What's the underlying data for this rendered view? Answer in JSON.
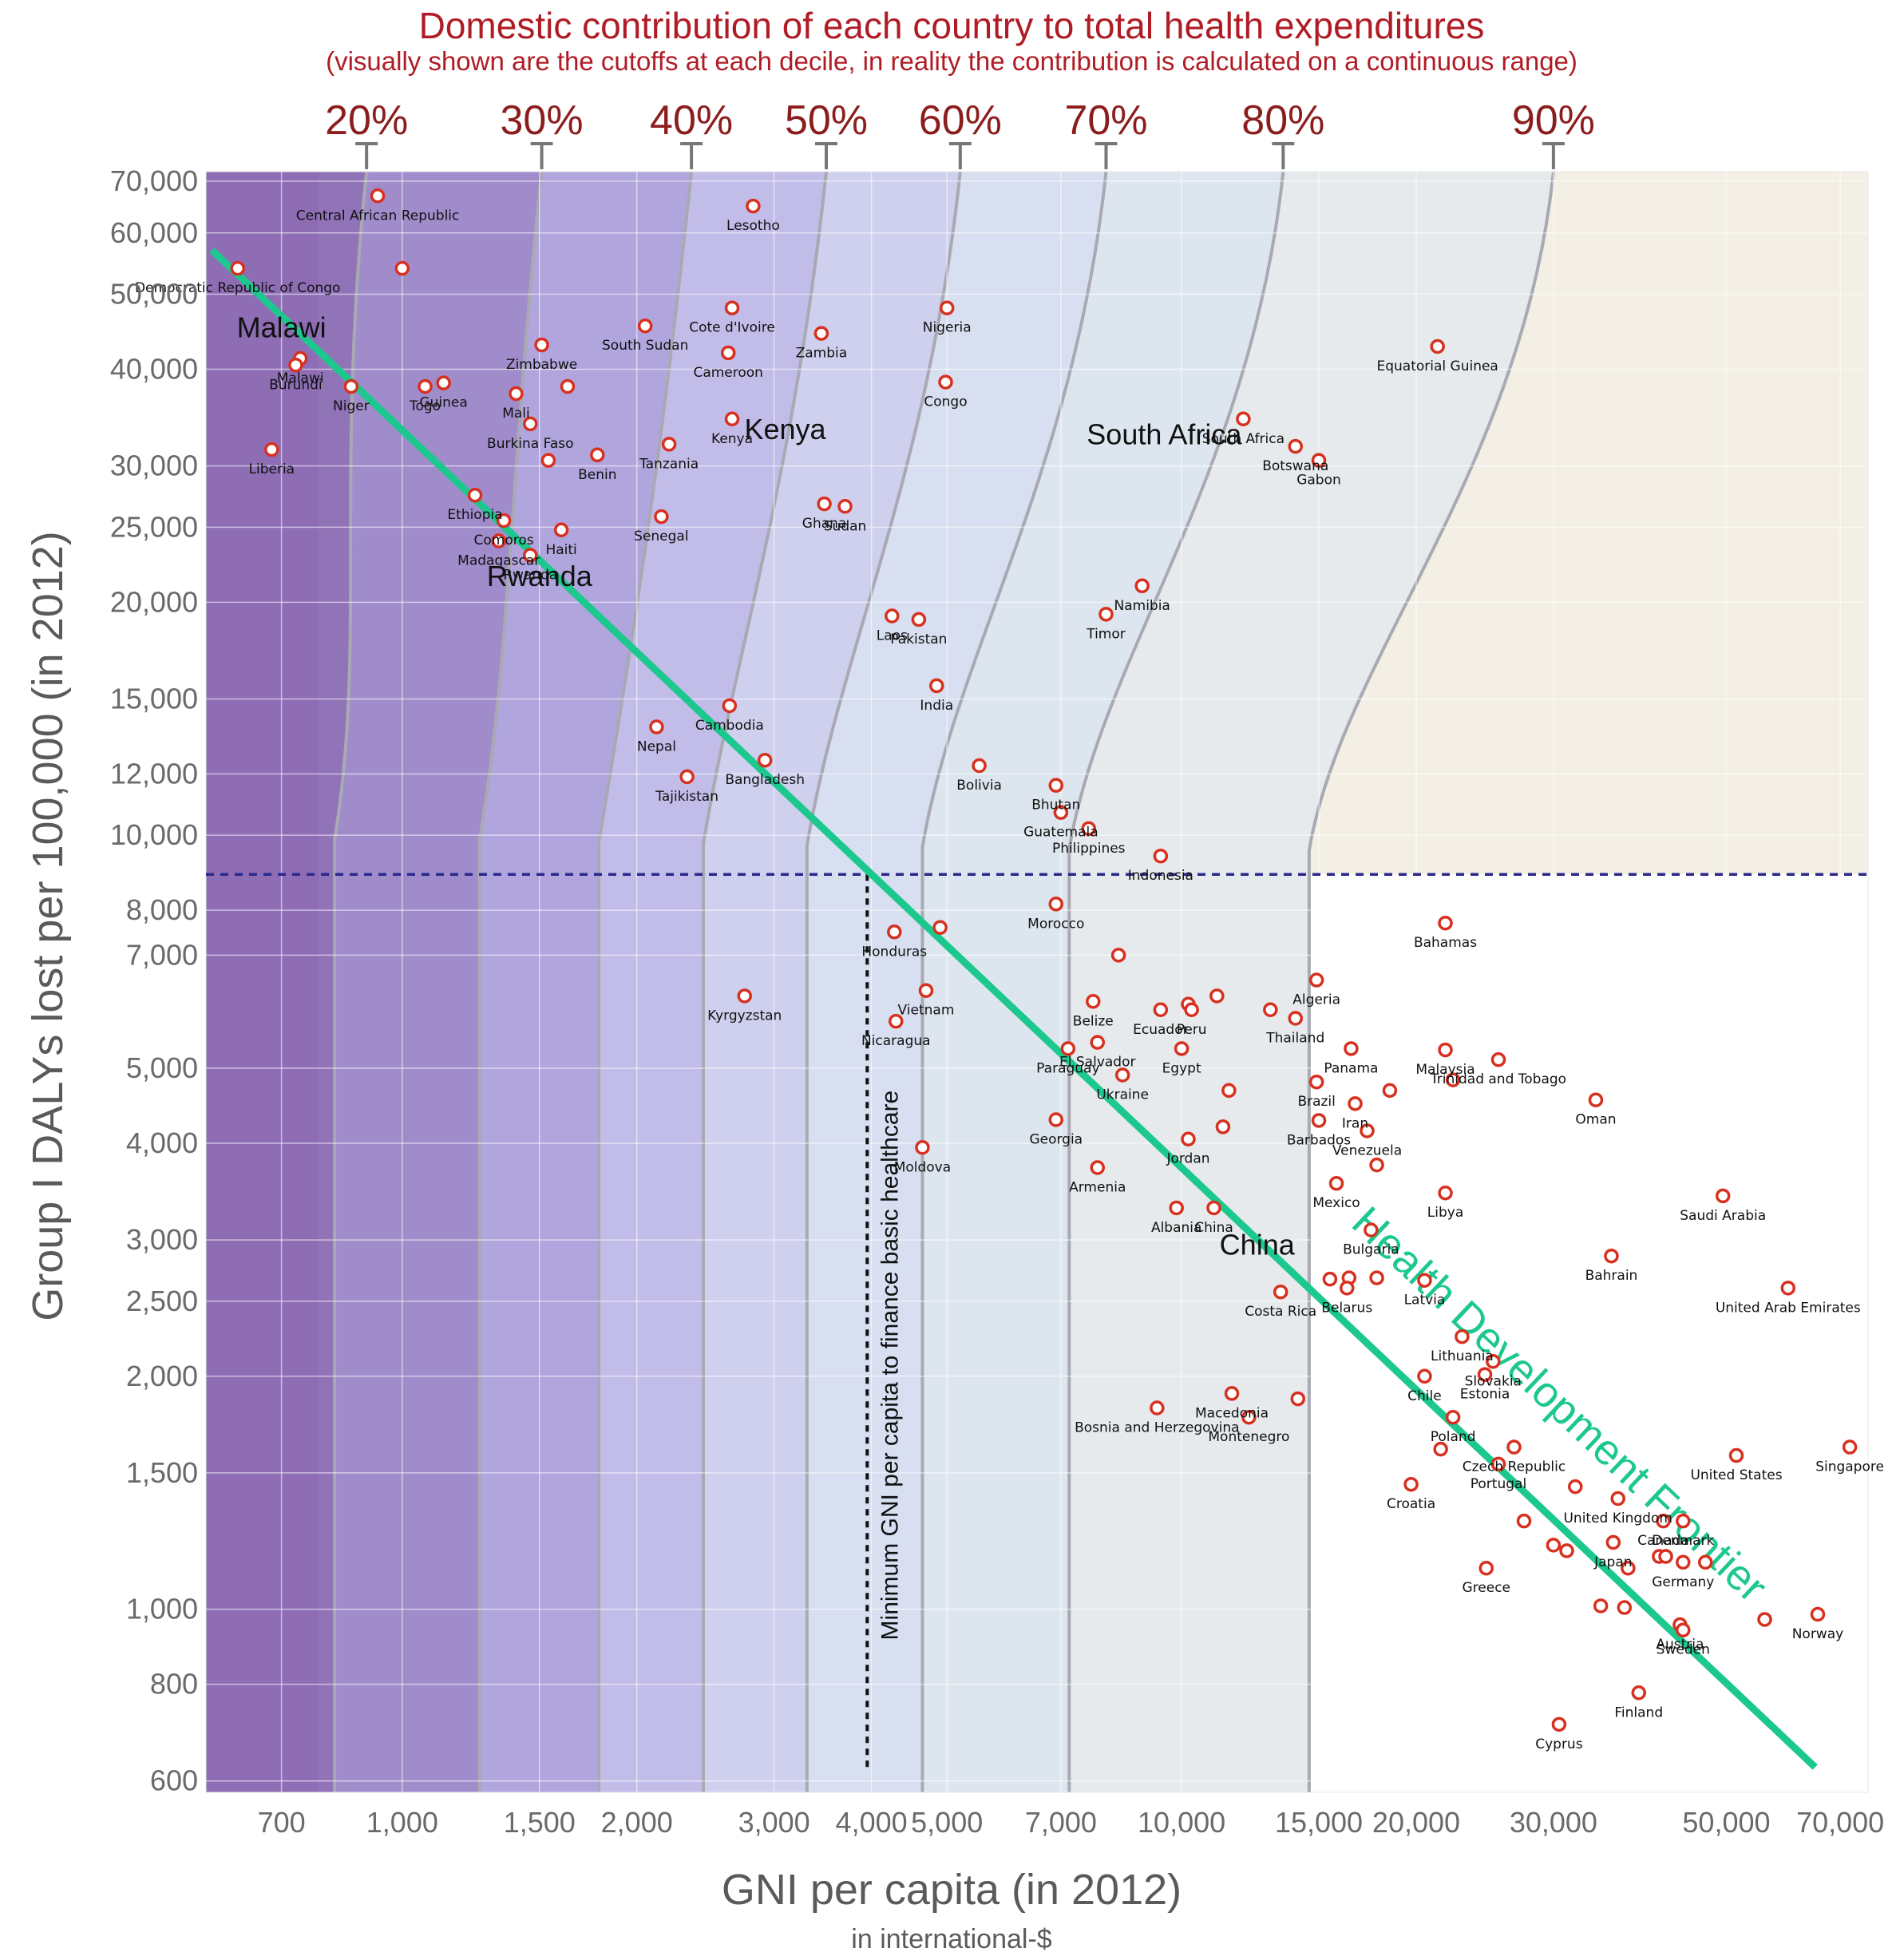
{
  "chart_data": {
    "type": "scatter",
    "title": "Domestic contribution of each country to total health expenditures",
    "subtitle": "(visually shown are the cutoffs at each decile, in reality the contribution is calculated on a continuous range)",
    "xlabel": "GNI per capita (in 2012)",
    "xlabel_sub": "in international-$",
    "ylabel": "Group I DALYs lost per 100,000 (in 2012)",
    "xscale": "log",
    "yscale": "log",
    "xlim": [
      560,
      76000
    ],
    "ylim": [
      580,
      72000
    ],
    "x_ticks": [
      {
        "value": 700,
        "label": "700"
      },
      {
        "value": 1000,
        "label": "1,000"
      },
      {
        "value": 1500,
        "label": "1,500"
      },
      {
        "value": 2000,
        "label": "2,000"
      },
      {
        "value": 3000,
        "label": "3,000"
      },
      {
        "value": 4000,
        "label": "4,000"
      },
      {
        "value": 5000,
        "label": "5,000"
      },
      {
        "value": 7000,
        "label": "7,000"
      },
      {
        "value": 10000,
        "label": "10,000"
      },
      {
        "value": 15000,
        "label": "15,000"
      },
      {
        "value": 20000,
        "label": "20,000"
      },
      {
        "value": 30000,
        "label": "30,000"
      },
      {
        "value": 50000,
        "label": "50,000"
      },
      {
        "value": 70000,
        "label": "70,000"
      }
    ],
    "y_ticks": [
      {
        "value": 600,
        "label": "600"
      },
      {
        "value": 800,
        "label": "800"
      },
      {
        "value": 1000,
        "label": "1,000"
      },
      {
        "value": 1500,
        "label": "1,500"
      },
      {
        "value": 2000,
        "label": "2,000"
      },
      {
        "value": 2500,
        "label": "2,500"
      },
      {
        "value": 3000,
        "label": "3,000"
      },
      {
        "value": 4000,
        "label": "4,000"
      },
      {
        "value": 5000,
        "label": "5,000"
      },
      {
        "value": 7000,
        "label": "7,000"
      },
      {
        "value": 8000,
        "label": "8,000"
      },
      {
        "value": 10000,
        "label": "10,000"
      },
      {
        "value": 12000,
        "label": "12,000"
      },
      {
        "value": 15000,
        "label": "15,000"
      },
      {
        "value": 20000,
        "label": "20,000"
      },
      {
        "value": 25000,
        "label": "25,000"
      },
      {
        "value": 30000,
        "label": "30,000"
      },
      {
        "value": 40000,
        "label": "40,000"
      },
      {
        "value": 50000,
        "label": "50,000"
      },
      {
        "value": 60000,
        "label": "60,000"
      },
      {
        "value": 70000,
        "label": "70,000"
      }
    ],
    "deciles": [
      {
        "label": "20%",
        "x": 900
      },
      {
        "label": "30%",
        "x": 1510
      },
      {
        "label": "40%",
        "x": 2350
      },
      {
        "label": "50%",
        "x": 3500
      },
      {
        "label": "60%",
        "x": 5200
      },
      {
        "label": "70%",
        "x": 8000
      },
      {
        "label": "80%",
        "x": 13500
      },
      {
        "label": "90%",
        "x": 30000
      }
    ],
    "frontier": {
      "label": "Health Development Frontier",
      "points": [
        [
          570,
          57000
        ],
        [
          65000,
          625
        ]
      ]
    },
    "basic_healthcare_threshold": {
      "label": "Minimum GNI per capita to finance basic healthcare",
      "x": 3950,
      "y": 8900
    },
    "highlighted_labels": [
      {
        "text": "Malawi",
        "x": 700,
        "y": 44000
      },
      {
        "text": "Kenya",
        "x": 3100,
        "y": 32500
      },
      {
        "text": "Rwanda",
        "x": 1500,
        "y": 21000
      },
      {
        "text": "South Africa",
        "x": 9500,
        "y": 32000
      },
      {
        "text": "China",
        "x": 12500,
        "y": 2870
      }
    ],
    "series": [
      {
        "points": [
          {
            "name": "Central African Republic",
            "x": 930,
            "y": 67000
          },
          {
            "name": "",
            "x": 1000,
            "y": 54000
          },
          {
            "name": "Democratic Republic of Congo",
            "x": 615,
            "y": 54000
          },
          {
            "name": "Lesotho",
            "x": 2820,
            "y": 65000
          },
          {
            "name": "Malawi",
            "x": 740,
            "y": 41300
          },
          {
            "name": "Burundi",
            "x": 730,
            "y": 40500
          },
          {
            "name": "Niger",
            "x": 860,
            "y": 38000
          },
          {
            "name": "Togo",
            "x": 1070,
            "y": 38000
          },
          {
            "name": "Guinea",
            "x": 1130,
            "y": 38400
          },
          {
            "name": "Zimbabwe",
            "x": 1510,
            "y": 43000
          },
          {
            "name": "Mali",
            "x": 1400,
            "y": 37200
          },
          {
            "name": "",
            "x": 1630,
            "y": 38000
          },
          {
            "name": "South Sudan",
            "x": 2050,
            "y": 45500
          },
          {
            "name": "Cote d'Ivoire",
            "x": 2650,
            "y": 48000
          },
          {
            "name": "Cameroon",
            "x": 2620,
            "y": 42000
          },
          {
            "name": "Zambia",
            "x": 3450,
            "y": 44500
          },
          {
            "name": "Nigeria",
            "x": 5000,
            "y": 48000
          },
          {
            "name": "Congo",
            "x": 4980,
            "y": 38500
          },
          {
            "name": "Equatorial Guinea",
            "x": 21300,
            "y": 42800
          },
          {
            "name": "Liberia",
            "x": 680,
            "y": 31500
          },
          {
            "name": "Burkina Faso",
            "x": 1460,
            "y": 34000
          },
          {
            "name": "",
            "x": 1540,
            "y": 30500
          },
          {
            "name": "Benin",
            "x": 1780,
            "y": 31000
          },
          {
            "name": "Tanzania",
            "x": 2200,
            "y": 32000
          },
          {
            "name": "Kenya",
            "x": 2650,
            "y": 34500
          },
          {
            "name": "South Africa",
            "x": 12000,
            "y": 34500
          },
          {
            "name": "Botswana",
            "x": 14000,
            "y": 31800
          },
          {
            "name": "Gabon",
            "x": 15000,
            "y": 30500
          },
          {
            "name": "Ethiopia",
            "x": 1240,
            "y": 27500
          },
          {
            "name": "Comoros",
            "x": 1350,
            "y": 25500
          },
          {
            "name": "Madagascar",
            "x": 1330,
            "y": 24000
          },
          {
            "name": "Haiti",
            "x": 1600,
            "y": 24800
          },
          {
            "name": "Rwanda",
            "x": 1460,
            "y": 23000
          },
          {
            "name": "Senegal",
            "x": 2150,
            "y": 25800
          },
          {
            "name": "Ghana",
            "x": 3480,
            "y": 26800
          },
          {
            "name": "Sudan",
            "x": 3700,
            "y": 26600
          },
          {
            "name": "Namibia",
            "x": 8900,
            "y": 21000
          },
          {
            "name": "Timor",
            "x": 8000,
            "y": 19300
          },
          {
            "name": "Laos",
            "x": 4250,
            "y": 19200
          },
          {
            "name": "Pakistan",
            "x": 4600,
            "y": 19000
          },
          {
            "name": "India",
            "x": 4850,
            "y": 15600
          },
          {
            "name": "Cambodia",
            "x": 2630,
            "y": 14700
          },
          {
            "name": "Nepal",
            "x": 2120,
            "y": 13800
          },
          {
            "name": "Bangladesh",
            "x": 2920,
            "y": 12500
          },
          {
            "name": "Tajikistan",
            "x": 2320,
            "y": 11900
          },
          {
            "name": "Bolivia",
            "x": 5500,
            "y": 12300
          },
          {
            "name": "Bhutan",
            "x": 6900,
            "y": 11600
          },
          {
            "name": "Guatemala",
            "x": 7000,
            "y": 10700
          },
          {
            "name": "Philippines",
            "x": 7600,
            "y": 10200
          },
          {
            "name": "Indonesia",
            "x": 9400,
            "y": 9400
          },
          {
            "name": "Morocco",
            "x": 6900,
            "y": 8150
          },
          {
            "name": "Bahamas",
            "x": 21800,
            "y": 7700
          },
          {
            "name": "Honduras",
            "x": 4280,
            "y": 7500
          },
          {
            "name": "",
            "x": 4900,
            "y": 7600
          },
          {
            "name": "",
            "x": 8300,
            "y": 7000
          },
          {
            "name": "Vietnam",
            "x": 4700,
            "y": 6300
          },
          {
            "name": "Belize",
            "x": 7700,
            "y": 6100
          },
          {
            "name": "Ecuador",
            "x": 9400,
            "y": 5950
          },
          {
            "name": "",
            "x": 10200,
            "y": 6050
          },
          {
            "name": "Peru",
            "x": 10300,
            "y": 5950
          },
          {
            "name": "",
            "x": 11100,
            "y": 6200
          },
          {
            "name": "",
            "x": 13000,
            "y": 5950
          },
          {
            "name": "Thailand",
            "x": 14000,
            "y": 5800
          },
          {
            "name": "Algeria",
            "x": 14900,
            "y": 6500
          },
          {
            "name": "Kyrgyzstan",
            "x": 2750,
            "y": 6200
          },
          {
            "name": "Nicaragua",
            "x": 4300,
            "y": 5750
          },
          {
            "name": "Paraguay",
            "x": 7150,
            "y": 5300
          },
          {
            "name": "El Salvador",
            "x": 7800,
            "y": 5400
          },
          {
            "name": "Egypt",
            "x": 10000,
            "y": 5300
          },
          {
            "name": "Panama",
            "x": 16500,
            "y": 5300
          },
          {
            "name": "Malaysia",
            "x": 21800,
            "y": 5280
          },
          {
            "name": "Trinidad and Tobago",
            "x": 25500,
            "y": 5130
          },
          {
            "name": "Ukraine",
            "x": 8400,
            "y": 4900
          },
          {
            "name": "",
            "x": 11500,
            "y": 4680
          },
          {
            "name": "Brazil",
            "x": 14900,
            "y": 4800
          },
          {
            "name": "Iran",
            "x": 16700,
            "y": 4500
          },
          {
            "name": "",
            "x": 18500,
            "y": 4680
          },
          {
            "name": "",
            "x": 22300,
            "y": 4830
          },
          {
            "name": "Oman",
            "x": 34000,
            "y": 4550
          },
          {
            "name": "Georgia",
            "x": 6900,
            "y": 4290
          },
          {
            "name": "",
            "x": 11300,
            "y": 4200
          },
          {
            "name": "Jordan",
            "x": 10200,
            "y": 4050
          },
          {
            "name": "Barbados",
            "x": 15000,
            "y": 4280
          },
          {
            "name": "Venezuela",
            "x": 17300,
            "y": 4150
          },
          {
            "name": "Moldova",
            "x": 4650,
            "y": 3950
          },
          {
            "name": "Armenia",
            "x": 7800,
            "y": 3720
          },
          {
            "name": "",
            "x": 17800,
            "y": 3750
          },
          {
            "name": "Mexico",
            "x": 15800,
            "y": 3550
          },
          {
            "name": "Libya",
            "x": 21800,
            "y": 3450
          },
          {
            "name": "Saudi Arabia",
            "x": 49500,
            "y": 3420
          },
          {
            "name": "Albania",
            "x": 9850,
            "y": 3300
          },
          {
            "name": "China",
            "x": 11000,
            "y": 3300
          },
          {
            "name": "Bulgaria",
            "x": 17500,
            "y": 3090
          },
          {
            "name": "Bahrain",
            "x": 35600,
            "y": 2860
          },
          {
            "name": "",
            "x": 15500,
            "y": 2670
          },
          {
            "name": "",
            "x": 16400,
            "y": 2680
          },
          {
            "name": "",
            "x": 17800,
            "y": 2680
          },
          {
            "name": "Belarus",
            "x": 16300,
            "y": 2600
          },
          {
            "name": "Costa Rica",
            "x": 13400,
            "y": 2570
          },
          {
            "name": "Latvia",
            "x": 20500,
            "y": 2660
          },
          {
            "name": "United Arab Emirates",
            "x": 60000,
            "y": 2600
          },
          {
            "name": "Lithuania",
            "x": 22900,
            "y": 2250
          },
          {
            "name": "Slovakia",
            "x": 25100,
            "y": 2090
          },
          {
            "name": "Chile",
            "x": 20500,
            "y": 2000
          },
          {
            "name": "Estonia",
            "x": 24500,
            "y": 2010
          },
          {
            "name": "Macedonia",
            "x": 11600,
            "y": 1900
          },
          {
            "name": "Bosnia and Herzegovina",
            "x": 9300,
            "y": 1820
          },
          {
            "name": "",
            "x": 14100,
            "y": 1870
          },
          {
            "name": "Montenegro",
            "x": 12200,
            "y": 1770
          },
          {
            "name": "Poland",
            "x": 22300,
            "y": 1770
          },
          {
            "name": "Czech Republic",
            "x": 26700,
            "y": 1620
          },
          {
            "name": "",
            "x": 21500,
            "y": 1610
          },
          {
            "name": "Portugal",
            "x": 25500,
            "y": 1540
          },
          {
            "name": "Singapore",
            "x": 72000,
            "y": 1620
          },
          {
            "name": "United States",
            "x": 51500,
            "y": 1580
          },
          {
            "name": "Croatia",
            "x": 19700,
            "y": 1450
          },
          {
            "name": "",
            "x": 32000,
            "y": 1440
          },
          {
            "name": "United Kingdom",
            "x": 36300,
            "y": 1390
          },
          {
            "name": "Canada",
            "x": 41500,
            "y": 1300
          },
          {
            "name": "Denmark",
            "x": 44000,
            "y": 1300
          },
          {
            "name": "Japan",
            "x": 35800,
            "y": 1220
          },
          {
            "name": "",
            "x": 27500,
            "y": 1300
          },
          {
            "name": "",
            "x": 30000,
            "y": 1210
          },
          {
            "name": "",
            "x": 31200,
            "y": 1190
          },
          {
            "name": "",
            "x": 41000,
            "y": 1170
          },
          {
            "name": "",
            "x": 41800,
            "y": 1170
          },
          {
            "name": "Germany",
            "x": 44000,
            "y": 1150
          },
          {
            "name": "",
            "x": 47000,
            "y": 1150
          },
          {
            "name": "",
            "x": 37400,
            "y": 1130
          },
          {
            "name": "Greece",
            "x": 24600,
            "y": 1130
          },
          {
            "name": "",
            "x": 34500,
            "y": 1010
          },
          {
            "name": "",
            "x": 37000,
            "y": 1005
          },
          {
            "name": "Norway",
            "x": 65500,
            "y": 985
          },
          {
            "name": "",
            "x": 56000,
            "y": 970
          },
          {
            "name": "Austria",
            "x": 43600,
            "y": 955
          },
          {
            "name": "Sweden",
            "x": 44000,
            "y": 940
          },
          {
            "name": "Finland",
            "x": 38600,
            "y": 780
          },
          {
            "name": "Cyprus",
            "x": 30500,
            "y": 710
          }
        ]
      }
    ]
  }
}
